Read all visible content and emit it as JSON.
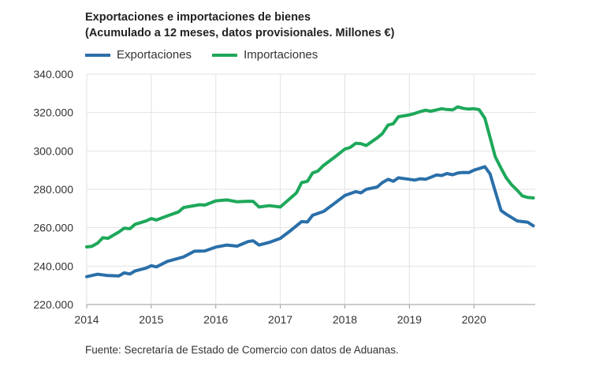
{
  "chart_data": {
    "type": "line",
    "title": "Exportaciones e importaciones de bienes",
    "subtitle": "(Acumulado a 12 meses, datos provisionales. Millones €)",
    "source": "Fuente: Secretaría de Estado de Comercio con datos de Aduanas.",
    "ylim": [
      220000,
      340000
    ],
    "yticks": [
      220000,
      240000,
      260000,
      280000,
      300000,
      320000,
      340000
    ],
    "ytick_labels": [
      "220.000",
      "240.000",
      "260.000",
      "280.000",
      "300.000",
      "320.000",
      "340.000"
    ],
    "xlim": [
      2014,
      2020.95
    ],
    "xticks": [
      2014,
      2015,
      2016,
      2017,
      2018,
      2019,
      2020
    ],
    "xtick_labels": [
      "2014",
      "2015",
      "2016",
      "2017",
      "2018",
      "2019",
      "2020"
    ],
    "grid": true,
    "legend_position": "top-left",
    "series": [
      {
        "name": "Exportaciones",
        "color": "#2a6fa9",
        "x": [
          2014.0,
          2014.17,
          2014.33,
          2014.5,
          2014.58,
          2014.67,
          2014.75,
          2014.92,
          2015.0,
          2015.08,
          2015.25,
          2015.5,
          2015.67,
          2015.83,
          2016.0,
          2016.17,
          2016.33,
          2016.5,
          2016.58,
          2016.67,
          2016.83,
          2017.0,
          2017.17,
          2017.33,
          2017.42,
          2017.5,
          2017.67,
          2017.83,
          2018.0,
          2018.17,
          2018.25,
          2018.33,
          2018.5,
          2018.58,
          2018.67,
          2018.75,
          2018.83,
          2019.0,
          2019.08,
          2019.17,
          2019.25,
          2019.42,
          2019.5,
          2019.58,
          2019.67,
          2019.75,
          2019.83,
          2019.92,
          2020.0,
          2020.08,
          2020.17,
          2020.25,
          2020.33,
          2020.42,
          2020.5,
          2020.67,
          2020.83,
          2020.92
        ],
        "values": [
          234500,
          235800,
          235100,
          234900,
          236500,
          235900,
          237500,
          239000,
          240200,
          239600,
          242500,
          244800,
          247800,
          247900,
          249900,
          251000,
          250400,
          252800,
          253200,
          251000,
          252400,
          254500,
          258800,
          263200,
          263000,
          266500,
          268500,
          272500,
          276800,
          278800,
          278200,
          280000,
          281200,
          283500,
          285200,
          284200,
          286000,
          285200,
          284800,
          285500,
          285200,
          287500,
          287200,
          288200,
          287600,
          288500,
          288800,
          288700,
          290000,
          290800,
          291800,
          288000,
          279000,
          269000,
          267000,
          263500,
          262900,
          261000
        ]
      },
      {
        "name": "Importaciones",
        "color": "#1ea85a",
        "x": [
          2014.0,
          2014.08,
          2014.17,
          2014.25,
          2014.33,
          2014.5,
          2014.58,
          2014.67,
          2014.75,
          2014.92,
          2015.0,
          2015.08,
          2015.25,
          2015.42,
          2015.5,
          2015.58,
          2015.75,
          2015.83,
          2016.0,
          2016.17,
          2016.33,
          2016.5,
          2016.58,
          2016.67,
          2016.83,
          2017.0,
          2017.17,
          2017.25,
          2017.33,
          2017.42,
          2017.5,
          2017.58,
          2017.67,
          2017.83,
          2018.0,
          2018.08,
          2018.17,
          2018.25,
          2018.33,
          2018.5,
          2018.58,
          2018.67,
          2018.75,
          2018.83,
          2019.0,
          2019.08,
          2019.17,
          2019.25,
          2019.33,
          2019.5,
          2019.58,
          2019.67,
          2019.75,
          2019.83,
          2019.92,
          2020.0,
          2020.08,
          2020.17,
          2020.25,
          2020.33,
          2020.42,
          2020.5,
          2020.58,
          2020.67,
          2020.75,
          2020.83,
          2020.92
        ],
        "values": [
          250000,
          250300,
          252000,
          254800,
          254500,
          257800,
          259800,
          259500,
          261800,
          263500,
          264800,
          264000,
          266200,
          268200,
          270500,
          271000,
          272000,
          271800,
          274000,
          274500,
          273500,
          273800,
          273700,
          270800,
          271500,
          270800,
          275800,
          278200,
          283500,
          284200,
          288500,
          289500,
          292500,
          296500,
          301000,
          301800,
          304000,
          303800,
          302800,
          306800,
          309000,
          313500,
          314200,
          317800,
          318800,
          319500,
          320500,
          321200,
          320700,
          322000,
          321600,
          321400,
          323000,
          322200,
          321800,
          322000,
          321500,
          317000,
          307000,
          297000,
          291000,
          286000,
          282500,
          279500,
          276600,
          275800,
          275500
        ]
      }
    ]
  }
}
